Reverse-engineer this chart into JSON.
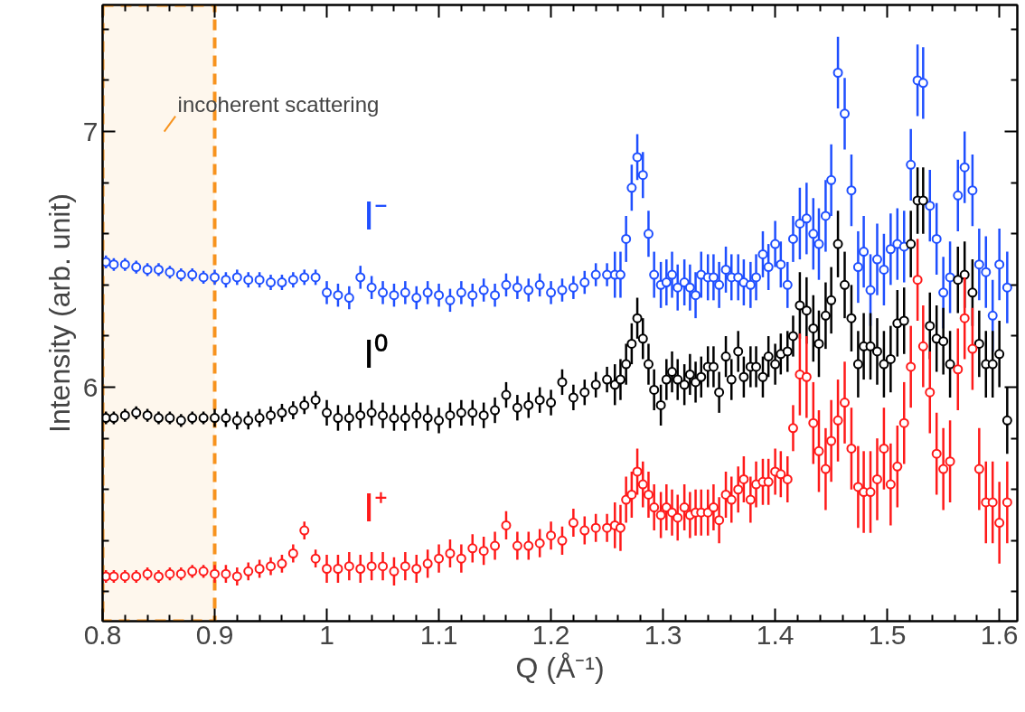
{
  "chart_data": {
    "type": "scatter",
    "xlabel": "Q (Å⁻¹)",
    "ylabel": "Intensity (arb. unit)",
    "marker": "circle",
    "grid": false,
    "xlim": [
      0.8,
      1.616
    ],
    "ylim": [
      5.085,
      7.495
    ],
    "xticks": [
      {
        "value": 0.8,
        "label": "0.8"
      },
      {
        "value": 0.82,
        "label": null
      },
      {
        "value": 0.84,
        "label": null
      },
      {
        "value": 0.86,
        "label": null
      },
      {
        "value": 0.88,
        "label": null
      },
      {
        "value": 0.9,
        "label": "0.9"
      },
      {
        "value": 0.92,
        "label": null
      },
      {
        "value": 0.94,
        "label": null
      },
      {
        "value": 0.96,
        "label": null
      },
      {
        "value": 0.98,
        "label": null
      },
      {
        "value": 1.0,
        "label": "1"
      },
      {
        "value": 1.02,
        "label": null
      },
      {
        "value": 1.04,
        "label": null
      },
      {
        "value": 1.06,
        "label": null
      },
      {
        "value": 1.08,
        "label": null
      },
      {
        "value": 1.1,
        "label": "1.1"
      },
      {
        "value": 1.12,
        "label": null
      },
      {
        "value": 1.14,
        "label": null
      },
      {
        "value": 1.16,
        "label": null
      },
      {
        "value": 1.18,
        "label": null
      },
      {
        "value": 1.2,
        "label": "1.2"
      },
      {
        "value": 1.22,
        "label": null
      },
      {
        "value": 1.24,
        "label": null
      },
      {
        "value": 1.26,
        "label": null
      },
      {
        "value": 1.28,
        "label": null
      },
      {
        "value": 1.3,
        "label": "1.3"
      },
      {
        "value": 1.32,
        "label": null
      },
      {
        "value": 1.34,
        "label": null
      },
      {
        "value": 1.36,
        "label": null
      },
      {
        "value": 1.38,
        "label": null
      },
      {
        "value": 1.4,
        "label": "1.4"
      },
      {
        "value": 1.42,
        "label": null
      },
      {
        "value": 1.44,
        "label": null
      },
      {
        "value": 1.46,
        "label": null
      },
      {
        "value": 1.48,
        "label": null
      },
      {
        "value": 1.5,
        "label": "1.5"
      },
      {
        "value": 1.52,
        "label": null
      },
      {
        "value": 1.54,
        "label": null
      },
      {
        "value": 1.56,
        "label": null
      },
      {
        "value": 1.58,
        "label": null
      },
      {
        "value": 1.6,
        "label": "1.6"
      }
    ],
    "yticks": [
      {
        "value": 5.2,
        "label": null
      },
      {
        "value": 5.4,
        "label": null
      },
      {
        "value": 5.6,
        "label": null
      },
      {
        "value": 5.8,
        "label": null
      },
      {
        "value": 6,
        "label": "6"
      },
      {
        "value": 6.2,
        "label": null
      },
      {
        "value": 6.4,
        "label": null
      },
      {
        "value": 6.6,
        "label": null
      },
      {
        "value": 6.8,
        "label": null
      },
      {
        "value": 7,
        "label": "7"
      },
      {
        "value": 7.2,
        "label": null
      },
      {
        "value": 7.4,
        "label": null
      }
    ],
    "x": [
      0.803,
      0.81,
      0.82,
      0.83,
      0.84,
      0.85,
      0.86,
      0.87,
      0.88,
      0.89,
      0.9,
      0.91,
      0.92,
      0.93,
      0.94,
      0.95,
      0.96,
      0.97,
      0.98,
      0.99,
      1.0,
      1.01,
      1.02,
      1.03,
      1.04,
      1.05,
      1.06,
      1.07,
      1.08,
      1.09,
      1.1,
      1.11,
      1.12,
      1.13,
      1.14,
      1.15,
      1.16,
      1.17,
      1.18,
      1.19,
      1.2,
      1.21,
      1.22,
      1.23,
      1.24,
      1.25,
      1.257,
      1.262,
      1.267,
      1.272,
      1.277,
      1.282,
      1.287,
      1.292,
      1.298,
      1.303,
      1.308,
      1.313,
      1.319,
      1.324,
      1.329,
      1.334,
      1.34,
      1.345,
      1.35,
      1.356,
      1.361,
      1.367,
      1.372,
      1.378,
      1.383,
      1.389,
      1.394,
      1.4,
      1.405,
      1.411,
      1.416,
      1.422,
      1.428,
      1.434,
      1.439,
      1.445,
      1.45,
      1.456,
      1.462,
      1.468,
      1.474,
      1.479,
      1.485,
      1.491,
      1.497,
      1.503,
      1.509,
      1.515,
      1.521,
      1.527,
      1.532,
      1.538,
      1.544,
      1.55,
      1.556,
      1.563,
      1.569,
      1.576,
      1.582,
      1.588,
      1.594,
      1.6,
      1.607
    ],
    "series": [
      {
        "name": "I⁻",
        "color": "#1f4fff",
        "values": [
          6.49,
          6.48,
          6.48,
          6.47,
          6.46,
          6.46,
          6.45,
          6.44,
          6.44,
          6.43,
          6.43,
          6.42,
          6.43,
          6.42,
          6.42,
          6.41,
          6.41,
          6.42,
          6.43,
          6.43,
          6.37,
          6.36,
          6.35,
          6.43,
          6.39,
          6.37,
          6.36,
          6.37,
          6.35,
          6.37,
          6.36,
          6.34,
          6.37,
          6.36,
          6.38,
          6.36,
          6.4,
          6.39,
          6.38,
          6.4,
          6.37,
          6.38,
          6.39,
          6.41,
          6.44,
          6.44,
          6.44,
          6.44,
          6.58,
          6.78,
          6.9,
          6.83,
          6.6,
          6.44,
          6.4,
          6.41,
          6.44,
          6.39,
          6.41,
          6.39,
          6.36,
          6.44,
          6.43,
          6.43,
          6.4,
          6.46,
          6.43,
          6.43,
          6.41,
          6.4,
          6.43,
          6.52,
          6.47,
          6.56,
          6.48,
          6.4,
          6.58,
          6.64,
          6.66,
          6.6,
          6.56,
          6.67,
          6.81,
          7.23,
          7.07,
          6.77,
          6.47,
          6.53,
          6.38,
          6.5,
          6.46,
          6.54,
          6.56,
          6.55,
          6.87,
          7.2,
          7.19,
          6.71,
          6.58,
          6.37,
          6.43,
          6.75,
          6.86,
          6.77,
          6.48,
          6.45,
          6.28,
          6.48,
          6.39
        ],
        "errors": [
          0.025,
          0.025,
          0.025,
          0.025,
          0.025,
          0.025,
          0.025,
          0.025,
          0.025,
          0.025,
          0.03,
          0.03,
          0.03,
          0.03,
          0.03,
          0.03,
          0.03,
          0.03,
          0.03,
          0.03,
          0.045,
          0.045,
          0.045,
          0.045,
          0.045,
          0.045,
          0.045,
          0.045,
          0.045,
          0.045,
          0.045,
          0.045,
          0.045,
          0.045,
          0.045,
          0.045,
          0.045,
          0.045,
          0.045,
          0.045,
          0.045,
          0.045,
          0.045,
          0.045,
          0.045,
          0.045,
          0.09,
          0.09,
          0.09,
          0.09,
          0.09,
          0.09,
          0.09,
          0.09,
          0.09,
          0.09,
          0.09,
          0.09,
          0.09,
          0.09,
          0.09,
          0.09,
          0.09,
          0.09,
          0.09,
          0.09,
          0.09,
          0.09,
          0.09,
          0.09,
          0.09,
          0.09,
          0.09,
          0.09,
          0.09,
          0.09,
          0.09,
          0.14,
          0.14,
          0.14,
          0.14,
          0.14,
          0.14,
          0.14,
          0.14,
          0.14,
          0.14,
          0.14,
          0.14,
          0.14,
          0.14,
          0.14,
          0.14,
          0.14,
          0.14,
          0.14,
          0.14,
          0.14,
          0.14,
          0.14,
          0.14,
          0.14,
          0.14,
          0.14,
          0.14,
          0.14,
          0.14,
          0.14,
          0.14
        ]
      },
      {
        "name": "I⁰",
        "color": "#000000",
        "values": [
          5.88,
          5.88,
          5.89,
          5.9,
          5.89,
          5.88,
          5.88,
          5.87,
          5.88,
          5.88,
          5.88,
          5.88,
          5.87,
          5.87,
          5.88,
          5.89,
          5.9,
          5.91,
          5.93,
          5.95,
          5.9,
          5.88,
          5.88,
          5.89,
          5.9,
          5.89,
          5.88,
          5.88,
          5.89,
          5.88,
          5.87,
          5.89,
          5.9,
          5.9,
          5.89,
          5.91,
          5.97,
          5.92,
          5.93,
          5.95,
          5.94,
          6.02,
          5.96,
          5.98,
          6.01,
          6.03,
          6.01,
          6.03,
          6.09,
          6.17,
          6.27,
          6.19,
          6.09,
          5.99,
          5.93,
          6.03,
          6.06,
          6.03,
          6.01,
          6.05,
          6.02,
          6.04,
          6.08,
          6.08,
          5.98,
          6.12,
          6.03,
          6.14,
          6.04,
          6.08,
          6.08,
          6.04,
          6.12,
          6.09,
          6.13,
          6.14,
          6.2,
          6.32,
          6.3,
          6.23,
          6.17,
          6.28,
          6.34,
          6.56,
          6.4,
          6.27,
          6.09,
          6.16,
          6.16,
          6.14,
          6.09,
          6.11,
          6.25,
          6.26,
          6.56,
          6.73,
          6.73,
          6.24,
          6.19,
          6.18,
          6.09,
          6.42,
          6.44,
          6.37,
          6.17,
          6.09,
          6.09,
          6.13,
          5.87
        ],
        "errors": [
          0.025,
          0.025,
          0.025,
          0.025,
          0.025,
          0.025,
          0.025,
          0.025,
          0.025,
          0.025,
          0.035,
          0.035,
          0.035,
          0.035,
          0.035,
          0.035,
          0.035,
          0.035,
          0.035,
          0.035,
          0.05,
          0.05,
          0.05,
          0.05,
          0.05,
          0.05,
          0.05,
          0.05,
          0.05,
          0.05,
          0.05,
          0.05,
          0.05,
          0.05,
          0.05,
          0.05,
          0.05,
          0.05,
          0.05,
          0.05,
          0.05,
          0.05,
          0.05,
          0.05,
          0.05,
          0.05,
          0.08,
          0.08,
          0.08,
          0.08,
          0.08,
          0.08,
          0.08,
          0.08,
          0.08,
          0.08,
          0.08,
          0.08,
          0.08,
          0.08,
          0.08,
          0.08,
          0.08,
          0.08,
          0.08,
          0.08,
          0.08,
          0.08,
          0.08,
          0.08,
          0.08,
          0.08,
          0.08,
          0.08,
          0.08,
          0.08,
          0.08,
          0.13,
          0.13,
          0.13,
          0.13,
          0.13,
          0.13,
          0.13,
          0.13,
          0.13,
          0.13,
          0.13,
          0.13,
          0.13,
          0.13,
          0.13,
          0.13,
          0.13,
          0.13,
          0.13,
          0.13,
          0.13,
          0.13,
          0.13,
          0.13,
          0.13,
          0.13,
          0.13,
          0.13,
          0.13,
          0.13,
          0.13,
          0.13
        ]
      },
      {
        "name": "I⁺",
        "color": "#ff1a1a",
        "values": [
          5.26,
          5.26,
          5.26,
          5.26,
          5.27,
          5.26,
          5.27,
          5.27,
          5.28,
          5.28,
          5.27,
          5.27,
          5.26,
          5.28,
          5.29,
          5.3,
          5.31,
          5.35,
          5.44,
          5.33,
          5.29,
          5.29,
          5.3,
          5.29,
          5.3,
          5.3,
          5.28,
          5.3,
          5.29,
          5.31,
          5.33,
          5.35,
          5.33,
          5.37,
          5.36,
          5.38,
          5.46,
          5.38,
          5.38,
          5.39,
          5.42,
          5.4,
          5.47,
          5.44,
          5.45,
          5.45,
          5.46,
          5.45,
          5.56,
          5.58,
          5.67,
          5.62,
          5.58,
          5.53,
          5.5,
          5.53,
          5.51,
          5.49,
          5.53,
          5.5,
          5.51,
          5.51,
          5.51,
          5.53,
          5.48,
          5.58,
          5.56,
          5.6,
          5.64,
          5.56,
          5.62,
          5.63,
          5.63,
          5.67,
          5.66,
          5.64,
          5.84,
          6.05,
          6.04,
          5.86,
          5.75,
          5.68,
          5.79,
          5.87,
          5.94,
          5.76,
          5.61,
          5.59,
          5.59,
          5.64,
          5.76,
          5.62,
          5.69,
          5.86,
          6.08,
          6.42,
          6.16,
          5.98,
          5.74,
          5.68,
          5.71,
          6.07,
          6.27,
          6.15,
          5.68,
          5.55,
          5.55,
          5.47,
          5.55
        ],
        "errors": [
          0.025,
          0.025,
          0.025,
          0.025,
          0.025,
          0.025,
          0.025,
          0.025,
          0.025,
          0.025,
          0.035,
          0.035,
          0.035,
          0.035,
          0.035,
          0.035,
          0.035,
          0.035,
          0.035,
          0.035,
          0.055,
          0.055,
          0.055,
          0.055,
          0.055,
          0.055,
          0.055,
          0.055,
          0.055,
          0.055,
          0.055,
          0.055,
          0.055,
          0.055,
          0.055,
          0.055,
          0.055,
          0.055,
          0.055,
          0.055,
          0.055,
          0.055,
          0.055,
          0.055,
          0.055,
          0.055,
          0.09,
          0.09,
          0.09,
          0.09,
          0.09,
          0.09,
          0.09,
          0.09,
          0.09,
          0.09,
          0.09,
          0.09,
          0.09,
          0.09,
          0.09,
          0.09,
          0.09,
          0.09,
          0.09,
          0.09,
          0.09,
          0.09,
          0.09,
          0.09,
          0.09,
          0.09,
          0.09,
          0.09,
          0.09,
          0.09,
          0.09,
          0.16,
          0.16,
          0.16,
          0.16,
          0.16,
          0.16,
          0.16,
          0.16,
          0.16,
          0.16,
          0.16,
          0.16,
          0.16,
          0.16,
          0.16,
          0.16,
          0.16,
          0.16,
          0.16,
          0.16,
          0.16,
          0.16,
          0.16,
          0.16,
          0.16,
          0.16,
          0.16,
          0.16,
          0.16,
          0.16,
          0.16,
          0.16
        ]
      }
    ],
    "bands": [
      {
        "axis": "x",
        "from": 0.8,
        "to": 0.9,
        "label": "incoherent scattering",
        "color": "#f7931e"
      }
    ]
  }
}
